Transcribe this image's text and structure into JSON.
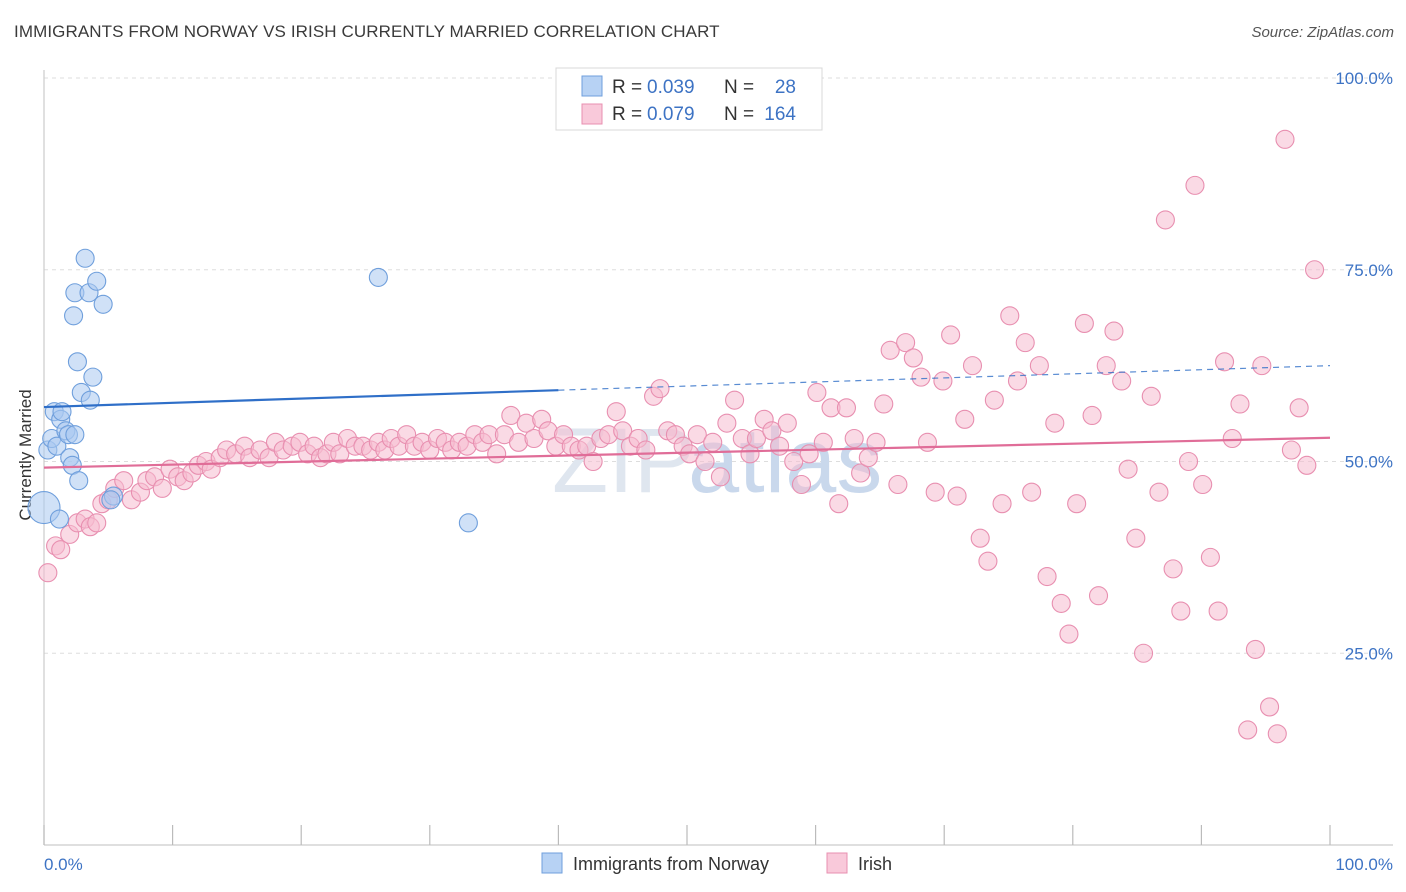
{
  "title": "IMMIGRANTS FROM NORWAY VS IRISH CURRENTLY MARRIED CORRELATION CHART",
  "source": "Source: ZipAtlas.com",
  "watermark": {
    "zip": "ZIP",
    "atlas": "atlas"
  },
  "colors": {
    "norway_fill": "#a9c8f0",
    "norway_stroke": "#6f9fdc",
    "norway_line": "#2f6fc8",
    "irish_fill": "#f6bcd0",
    "irish_stroke": "#e88fb0",
    "irish_line": "#e06d98",
    "grid": "#dddddd",
    "axis_label": "#3d73c4"
  },
  "legend": {
    "r_label": "R =",
    "n_label": "N =",
    "norway": {
      "r": "0.039",
      "n": "28"
    },
    "irish": {
      "r": "0.079",
      "n": "164"
    }
  },
  "chart_data": {
    "type": "scatter",
    "title": "IMMIGRANTS FROM NORWAY VS IRISH CURRENTLY MARRIED CORRELATION CHART",
    "xlabel": "",
    "ylabel": "Currently Married",
    "xlim": [
      0,
      100
    ],
    "ylim": [
      0,
      100
    ],
    "x_tick_labels": [
      "0.0%",
      "100.0%"
    ],
    "y_tick_labels": [
      "25.0%",
      "50.0%",
      "75.0%",
      "100.0%"
    ],
    "y_ticks": [
      25,
      50,
      75,
      100
    ],
    "grid": true,
    "legend_position": "top-center",
    "series": [
      {
        "name": "Immigrants from Norway",
        "r": 0.039,
        "n": 28,
        "trend": {
          "x0": 0,
          "y0": 57.1,
          "x1": 40,
          "y1": 59.3,
          "dashed_to_x": 100,
          "dashed_to_y": 62.5
        },
        "points": [
          [
            0.0,
            44.0
          ],
          [
            0.3,
            51.5
          ],
          [
            0.6,
            53.0
          ],
          [
            0.8,
            56.5
          ],
          [
            1.0,
            52.0
          ],
          [
            1.2,
            42.5
          ],
          [
            1.3,
            55.5
          ],
          [
            1.4,
            56.5
          ],
          [
            1.7,
            54.0
          ],
          [
            1.9,
            53.5
          ],
          [
            2.0,
            50.5
          ],
          [
            2.2,
            49.5
          ],
          [
            2.4,
            53.5
          ],
          [
            2.3,
            69.0
          ],
          [
            2.4,
            72.0
          ],
          [
            2.6,
            63.0
          ],
          [
            2.7,
            47.5
          ],
          [
            2.9,
            59.0
          ],
          [
            3.2,
            76.5
          ],
          [
            3.5,
            72.0
          ],
          [
            3.6,
            58.0
          ],
          [
            3.8,
            61.0
          ],
          [
            4.1,
            73.5
          ],
          [
            4.6,
            70.5
          ],
          [
            5.4,
            45.5
          ],
          [
            26.0,
            74.0
          ],
          [
            33.0,
            42.0
          ],
          [
            5.2,
            45.0
          ]
        ]
      },
      {
        "name": "Irish",
        "r": 0.079,
        "n": 164,
        "trend": {
          "x0": 0,
          "y0": 49.2,
          "x1": 100,
          "y1": 53.1
        },
        "points": [
          [
            0.3,
            35.5
          ],
          [
            0.9,
            39.0
          ],
          [
            1.3,
            38.5
          ],
          [
            2.0,
            40.5
          ],
          [
            2.6,
            42.0
          ],
          [
            3.2,
            42.5
          ],
          [
            3.6,
            41.5
          ],
          [
            4.1,
            42.0
          ],
          [
            4.5,
            44.5
          ],
          [
            5.0,
            45.0
          ],
          [
            5.5,
            46.5
          ],
          [
            6.2,
            47.5
          ],
          [
            6.8,
            45.0
          ],
          [
            7.5,
            46.0
          ],
          [
            8.0,
            47.5
          ],
          [
            8.6,
            48.0
          ],
          [
            9.2,
            46.5
          ],
          [
            9.8,
            49.0
          ],
          [
            10.4,
            48.0
          ],
          [
            10.9,
            47.5
          ],
          [
            11.5,
            48.5
          ],
          [
            12.0,
            49.5
          ],
          [
            12.6,
            50.0
          ],
          [
            13.0,
            49.0
          ],
          [
            13.7,
            50.5
          ],
          [
            14.2,
            51.5
          ],
          [
            14.9,
            51.0
          ],
          [
            15.6,
            52.0
          ],
          [
            16.0,
            50.5
          ],
          [
            16.8,
            51.5
          ],
          [
            17.5,
            50.5
          ],
          [
            18.0,
            52.5
          ],
          [
            18.6,
            51.5
          ],
          [
            19.3,
            52.0
          ],
          [
            19.9,
            52.5
          ],
          [
            20.5,
            51.0
          ],
          [
            21.0,
            52.0
          ],
          [
            21.5,
            50.5
          ],
          [
            22.0,
            51.0
          ],
          [
            22.5,
            52.5
          ],
          [
            23.0,
            51.0
          ],
          [
            23.6,
            53.0
          ],
          [
            24.2,
            52.0
          ],
          [
            24.8,
            52.0
          ],
          [
            25.4,
            51.5
          ],
          [
            26.0,
            52.5
          ],
          [
            26.5,
            51.5
          ],
          [
            27.0,
            53.0
          ],
          [
            27.6,
            52.0
          ],
          [
            28.2,
            53.5
          ],
          [
            28.8,
            52.0
          ],
          [
            29.4,
            52.5
          ],
          [
            30.0,
            51.5
          ],
          [
            30.6,
            53.0
          ],
          [
            31.2,
            52.5
          ],
          [
            31.7,
            51.5
          ],
          [
            32.3,
            52.5
          ],
          [
            32.9,
            52.0
          ],
          [
            33.5,
            53.5
          ],
          [
            34.1,
            52.5
          ],
          [
            34.6,
            53.5
          ],
          [
            35.2,
            51.0
          ],
          [
            35.8,
            53.5
          ],
          [
            36.3,
            56.0
          ],
          [
            36.9,
            52.5
          ],
          [
            37.5,
            55.0
          ],
          [
            38.1,
            53.0
          ],
          [
            38.7,
            55.5
          ],
          [
            39.2,
            54.0
          ],
          [
            39.8,
            52.0
          ],
          [
            40.4,
            53.5
          ],
          [
            41.0,
            52.0
          ],
          [
            41.6,
            51.5
          ],
          [
            42.2,
            52.0
          ],
          [
            42.7,
            50.0
          ],
          [
            43.3,
            53.0
          ],
          [
            43.9,
            53.5
          ],
          [
            44.5,
            56.5
          ],
          [
            45.0,
            54.0
          ],
          [
            45.6,
            52.0
          ],
          [
            46.2,
            53.0
          ],
          [
            46.8,
            51.5
          ],
          [
            47.4,
            58.5
          ],
          [
            47.9,
            59.5
          ],
          [
            48.5,
            54.0
          ],
          [
            49.1,
            53.5
          ],
          [
            49.7,
            52.0
          ],
          [
            50.2,
            51.0
          ],
          [
            50.8,
            53.5
          ],
          [
            51.4,
            50.0
          ],
          [
            52.0,
            52.5
          ],
          [
            52.6,
            48.0
          ],
          [
            53.1,
            55.0
          ],
          [
            53.7,
            58.0
          ],
          [
            54.3,
            53.0
          ],
          [
            54.9,
            51.0
          ],
          [
            55.4,
            53.0
          ],
          [
            56.0,
            55.5
          ],
          [
            56.6,
            54.0
          ],
          [
            57.2,
            52.0
          ],
          [
            57.8,
            55.0
          ],
          [
            58.3,
            50.0
          ],
          [
            58.9,
            47.0
          ],
          [
            59.5,
            51.0
          ],
          [
            60.1,
            59.0
          ],
          [
            60.6,
            52.5
          ],
          [
            61.2,
            57.0
          ],
          [
            61.8,
            44.5
          ],
          [
            62.4,
            57.0
          ],
          [
            63.0,
            53.0
          ],
          [
            63.5,
            48.5
          ],
          [
            64.1,
            50.5
          ],
          [
            64.7,
            52.5
          ],
          [
            65.3,
            57.5
          ],
          [
            65.8,
            64.5
          ],
          [
            66.4,
            47.0
          ],
          [
            67.0,
            65.5
          ],
          [
            67.6,
            63.5
          ],
          [
            68.2,
            61.0
          ],
          [
            68.7,
            52.5
          ],
          [
            69.3,
            46.0
          ],
          [
            69.9,
            60.5
          ],
          [
            70.5,
            66.5
          ],
          [
            71.0,
            45.5
          ],
          [
            71.6,
            55.5
          ],
          [
            72.2,
            62.5
          ],
          [
            72.8,
            40.0
          ],
          [
            73.4,
            37.0
          ],
          [
            73.9,
            58.0
          ],
          [
            74.5,
            44.5
          ],
          [
            75.1,
            69.0
          ],
          [
            75.7,
            60.5
          ],
          [
            76.3,
            65.5
          ],
          [
            76.8,
            46.0
          ],
          [
            77.4,
            62.5
          ],
          [
            78.0,
            35.0
          ],
          [
            78.6,
            55.0
          ],
          [
            79.1,
            31.5
          ],
          [
            79.7,
            27.5
          ],
          [
            80.3,
            44.5
          ],
          [
            80.9,
            68.0
          ],
          [
            81.5,
            56.0
          ],
          [
            82.0,
            32.5
          ],
          [
            82.6,
            62.5
          ],
          [
            83.2,
            67.0
          ],
          [
            83.8,
            60.5
          ],
          [
            84.3,
            49.0
          ],
          [
            84.9,
            40.0
          ],
          [
            85.5,
            25.0
          ],
          [
            86.1,
            58.5
          ],
          [
            86.7,
            46.0
          ],
          [
            87.2,
            81.5
          ],
          [
            87.8,
            36.0
          ],
          [
            88.4,
            30.5
          ],
          [
            89.0,
            50.0
          ],
          [
            89.5,
            86.0
          ],
          [
            90.1,
            47.0
          ],
          [
            90.7,
            37.5
          ],
          [
            91.3,
            30.5
          ],
          [
            91.8,
            63.0
          ],
          [
            92.4,
            53.0
          ],
          [
            93.0,
            57.5
          ],
          [
            93.6,
            15.0
          ],
          [
            94.2,
            25.5
          ],
          [
            94.7,
            62.5
          ],
          [
            95.3,
            18.0
          ],
          [
            95.9,
            14.5
          ],
          [
            96.5,
            92.0
          ],
          [
            97.0,
            51.5
          ],
          [
            97.6,
            57.0
          ],
          [
            98.2,
            49.5
          ],
          [
            98.8,
            75.0
          ]
        ]
      }
    ]
  }
}
